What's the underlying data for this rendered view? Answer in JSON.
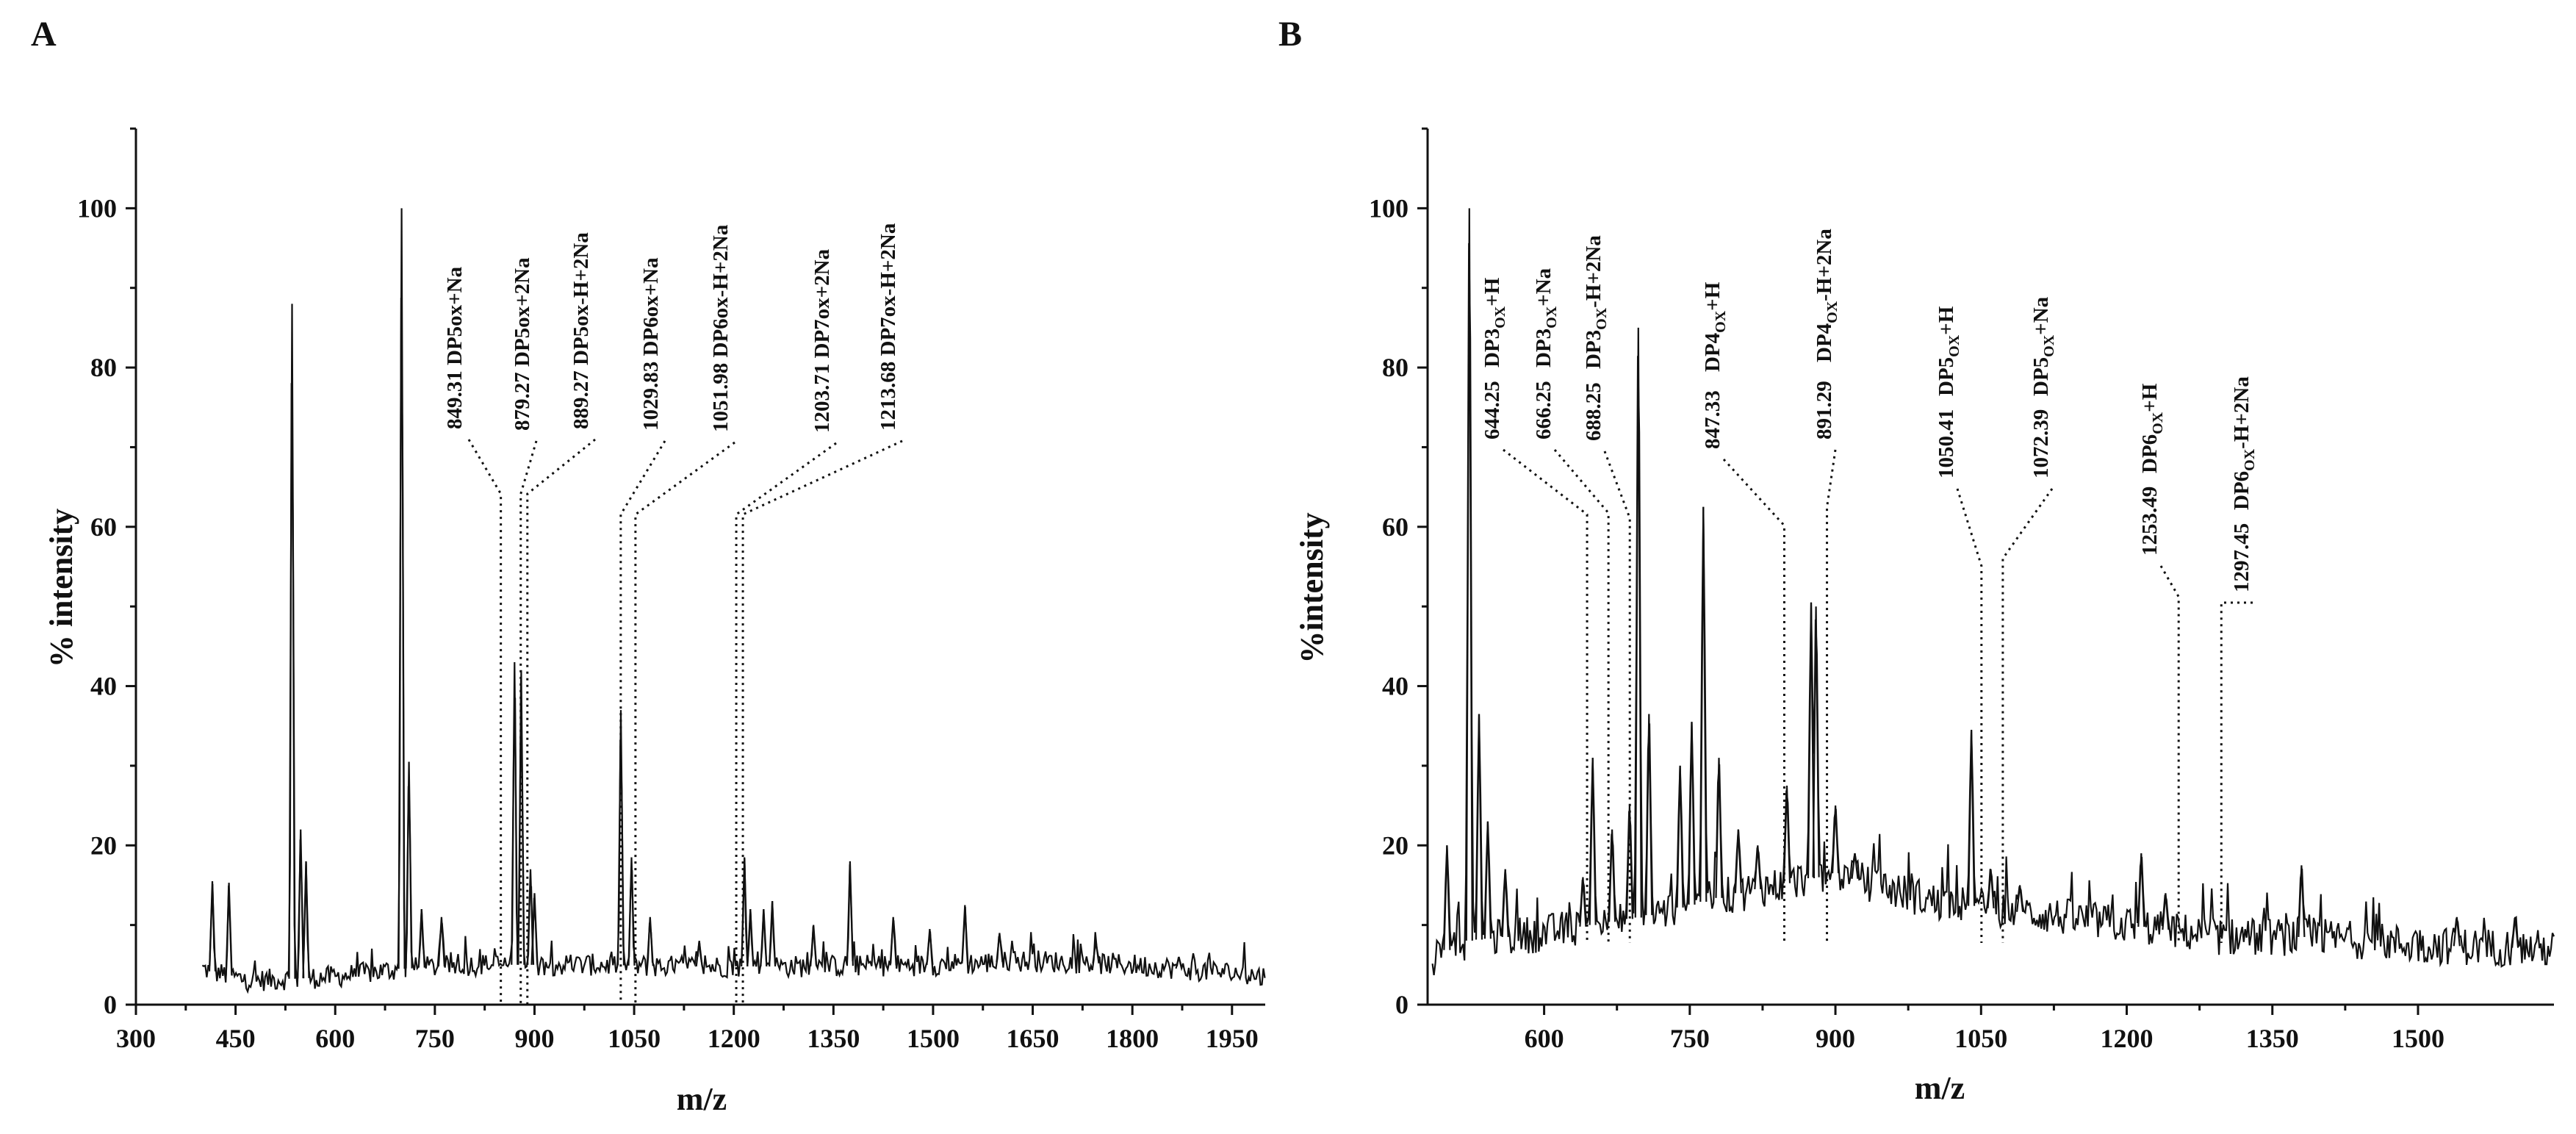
{
  "chart_data": [
    {
      "type": "line",
      "panel_label": "A",
      "xlabel": "m/z",
      "ylabel": "% intensity",
      "xlim": [
        300,
        2000
      ],
      "ylim": [
        0,
        110
      ],
      "xticks": [
        300,
        450,
        600,
        750,
        900,
        1050,
        1200,
        1350,
        1500,
        1650,
        1800,
        1950
      ],
      "yticks": [
        0,
        20,
        40,
        60,
        80,
        100
      ],
      "baseline": [
        [
          400,
          4.5
        ],
        [
          470,
          3
        ],
        [
          600,
          3.5
        ],
        [
          700,
          4.5
        ],
        [
          800,
          5
        ],
        [
          900,
          5
        ],
        [
          1000,
          5
        ],
        [
          1100,
          4.8
        ],
        [
          1300,
          4.8
        ],
        [
          1500,
          5
        ],
        [
          1650,
          5.5
        ],
        [
          1800,
          5
        ],
        [
          1950,
          4
        ],
        [
          2000,
          3.5
        ]
      ],
      "peaks": [
        [
          415,
          15.5
        ],
        [
          440,
          15.3
        ],
        [
          535,
          88
        ],
        [
          548,
          22
        ],
        [
          556,
          18
        ],
        [
          700,
          100
        ],
        [
          711,
          30.5
        ],
        [
          730,
          12
        ],
        [
          760,
          11
        ],
        [
          870,
          43
        ],
        [
          880,
          42
        ],
        [
          894,
          17
        ],
        [
          900,
          14
        ],
        [
          1030,
          37
        ],
        [
          1046,
          18.5
        ],
        [
          1074,
          11
        ],
        [
          1148,
          8
        ],
        [
          1216,
          18.5
        ],
        [
          1225,
          12
        ],
        [
          1245,
          12
        ],
        [
          1258,
          13
        ],
        [
          1320,
          10
        ],
        [
          1375,
          18
        ],
        [
          1440,
          11
        ],
        [
          1495,
          9.5
        ],
        [
          1548,
          12.5
        ],
        [
          1600,
          9
        ],
        [
          1745,
          8
        ],
        [
          1870,
          6
        ]
      ],
      "annotations": [
        {
          "label": "849.31  DP5ox+Na",
          "x": 849.31
        },
        {
          "label": "879.27  DP5ox+2Na",
          "x": 879.27
        },
        {
          "label": "889.27  DP5ox-H+2Na",
          "x": 889.27
        },
        {
          "label": "1029.83  DP6ox+Na",
          "x": 1029.83
        },
        {
          "label": "1051.98  DP6ox-H+2Na",
          "x": 1051.98
        },
        {
          "label": "1203.71  DP7ox+2Na",
          "x": 1203.71
        },
        {
          "label": "1213.68  DP7ox-H+2Na",
          "x": 1213.68
        }
      ]
    },
    {
      "type": "line",
      "panel_label": "B",
      "xlabel": "m/z",
      "ylabel": "%intensity",
      "xlim": [
        480,
        1640
      ],
      "ylim": [
        0,
        110
      ],
      "xticks": [
        600,
        750,
        900,
        1050,
        1200,
        1350,
        1500
      ],
      "yticks": [
        0,
        20,
        40,
        60,
        80,
        100
      ],
      "baseline": [
        [
          485,
          6
        ],
        [
          520,
          8
        ],
        [
          600,
          9
        ],
        [
          700,
          11
        ],
        [
          800,
          14
        ],
        [
          880,
          16
        ],
        [
          900,
          16.5
        ],
        [
          1000,
          13
        ],
        [
          1100,
          11.5
        ],
        [
          1200,
          10
        ],
        [
          1300,
          8.5
        ],
        [
          1400,
          8.5
        ],
        [
          1500,
          7.5
        ],
        [
          1640,
          7
        ]
      ],
      "peaks": [
        [
          500,
          20
        ],
        [
          523,
          100
        ],
        [
          533,
          36.5
        ],
        [
          542,
          23
        ],
        [
          560,
          17
        ],
        [
          640,
          16
        ],
        [
          650,
          31
        ],
        [
          670,
          22
        ],
        [
          688,
          25
        ],
        [
          697,
          85
        ],
        [
          708,
          36.5
        ],
        [
          740,
          30
        ],
        [
          752,
          35.5
        ],
        [
          764,
          62.5
        ],
        [
          780,
          31
        ],
        [
          800,
          22
        ],
        [
          820,
          20
        ],
        [
          850,
          27.5
        ],
        [
          875,
          50.5
        ],
        [
          880,
          50
        ],
        [
          900,
          25
        ],
        [
          920,
          19
        ],
        [
          1040,
          34.5
        ],
        [
          1060,
          17
        ],
        [
          1090,
          15
        ],
        [
          1215,
          19
        ],
        [
          1240,
          14
        ],
        [
          1380,
          17.5
        ],
        [
          1540,
          11
        ],
        [
          1600,
          11
        ]
      ],
      "annotations": [
        {
          "num": "644.25",
          "base": "DP3",
          "sub": "OX",
          "suffix": "+H",
          "x": 644.25
        },
        {
          "num": "666.25",
          "base": "DP3",
          "sub": "OX",
          "suffix": "+Na",
          "x": 666.25
        },
        {
          "num": "688.25",
          "base": "DP3",
          "sub": "OX",
          "suffix": "-H+2Na",
          "x": 688.25
        },
        {
          "num": "847.33",
          "base": "DP4",
          "sub": "OX",
          "suffix": "+H",
          "x": 847.33
        },
        {
          "num": "891.29",
          "base": "DP4",
          "sub": "OX",
          "suffix": "-H+2Na",
          "x": 891.29
        },
        {
          "num": "1050.41",
          "base": "DP5",
          "sub": "OX",
          "suffix": "+H",
          "x": 1050.41
        },
        {
          "num": "1072.39",
          "base": "DP5",
          "sub": "OX",
          "suffix": "+Na",
          "x": 1072.39
        },
        {
          "num": "1253.49",
          "base": "DP6",
          "sub": "OX",
          "suffix": "+H",
          "x": 1253.49
        },
        {
          "num": "1297.45",
          "base": "DP6",
          "sub": "OX",
          "suffix": "-H+2Na",
          "x": 1297.45
        }
      ]
    }
  ],
  "colors": {
    "line": "#111111",
    "background": "#ffffff"
  }
}
